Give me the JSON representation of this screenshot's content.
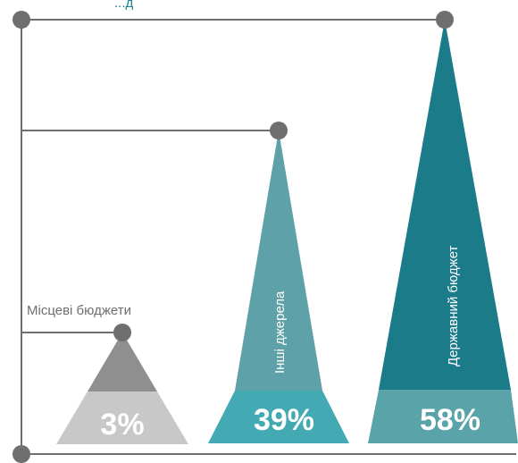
{
  "chart_data": {
    "type": "bar",
    "title_fragment": "...д",
    "categories": [
      "Місцеві бюджети",
      "Інші джерела",
      "Державний бюджет"
    ],
    "values": [
      3,
      39,
      58
    ],
    "value_labels": [
      "3%",
      "39%",
      "58%"
    ],
    "unit": "%",
    "ylim": [
      0,
      58
    ],
    "colors": {
      "local_top": "#8f8f8f",
      "local_base": "#c8c8c8",
      "other_top": "#5ea1a8",
      "other_base": "#43aab3",
      "state_top": "#1b7b88",
      "state_base": "#5aa3a9",
      "axis": "#6f6f6f"
    }
  }
}
